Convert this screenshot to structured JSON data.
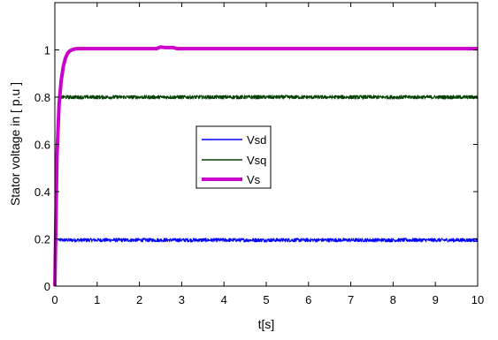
{
  "chart_data": {
    "type": "line",
    "title": "",
    "xlabel": "t[s]",
    "ylabel": "Stator voltage in [ p.u ]",
    "xlim": [
      0,
      10
    ],
    "ylim": [
      0,
      1.2
    ],
    "xticks": [
      0,
      1,
      2,
      3,
      4,
      5,
      6,
      7,
      8,
      9,
      10
    ],
    "yticks": [
      0,
      0.2,
      0.4,
      0.6,
      0.8,
      1
    ],
    "ytick_labels": [
      "0",
      "0.2",
      "0.4",
      "0.6",
      "0.8",
      "1"
    ],
    "grid": false,
    "legend": {
      "placement": "center",
      "entries": [
        "Vsd",
        "Vsq",
        "Vs"
      ]
    },
    "series": [
      {
        "name": "Vsd",
        "color": "#0000ff",
        "steady_value": 0.195,
        "noise_amplitude": 0.008,
        "x": [
          0,
          0.02,
          0.05,
          10
        ],
        "y": [
          0,
          0.1,
          0.195,
          0.195
        ]
      },
      {
        "name": "Vsq",
        "color": "#004000",
        "steady_value": 0.8,
        "noise_amplitude": 0.008,
        "x": [
          0,
          0.03,
          0.07,
          0.12,
          10
        ],
        "y": [
          0,
          0.4,
          0.75,
          0.8,
          0.8
        ]
      },
      {
        "name": "Vs",
        "color": "#cc00cc",
        "steady_value": 1.005,
        "x": [
          0,
          0.05,
          0.1,
          0.15,
          0.2,
          0.25,
          0.3,
          0.35,
          0.4,
          0.45,
          0.5,
          0.6,
          0.7,
          2.4,
          2.5,
          2.6,
          2.8,
          2.9,
          10
        ],
        "y": [
          0,
          0.55,
          0.77,
          0.87,
          0.93,
          0.965,
          0.985,
          0.995,
          1.0,
          1.003,
          1.005,
          1.005,
          1.005,
          1.005,
          1.012,
          1.01,
          1.01,
          1.005,
          1.005
        ]
      }
    ]
  }
}
